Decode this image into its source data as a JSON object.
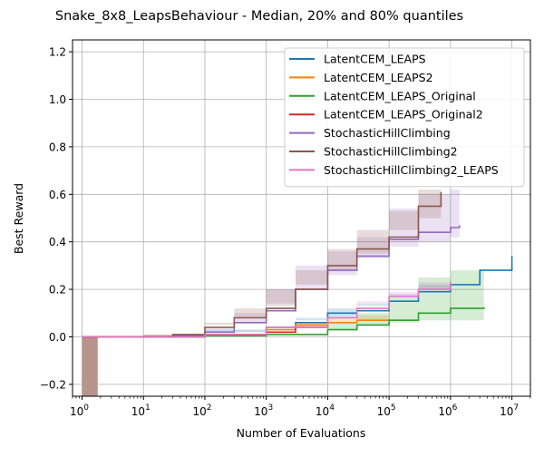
{
  "chart_data": {
    "type": "line",
    "title": "Snake_8x8_LeapsBehaviour - Median, 20% and 80% quantiles",
    "xlabel": "Number of Evaluations",
    "ylabel": "Best Reward",
    "x_scale": "log",
    "xlim": [
      0.7,
      20000000
    ],
    "ylim": [
      -0.25,
      1.25
    ],
    "x_ticks": [
      {
        "value": 1,
        "label": "10^0"
      },
      {
        "value": 10,
        "label": "10^1"
      },
      {
        "value": 100,
        "label": "10^2"
      },
      {
        "value": 1000,
        "label": "10^3"
      },
      {
        "value": 10000,
        "label": "10^4"
      },
      {
        "value": 100000,
        "label": "10^5"
      },
      {
        "value": 1000000,
        "label": "10^6"
      },
      {
        "value": 10000000,
        "label": "10^7"
      }
    ],
    "y_ticks": [
      {
        "value": -0.2,
        "label": "−0.2"
      },
      {
        "value": 0.0,
        "label": "0.0"
      },
      {
        "value": 0.2,
        "label": "0.2"
      },
      {
        "value": 0.4,
        "label": "0.4"
      },
      {
        "value": 0.6,
        "label": "0.6"
      },
      {
        "value": 0.8,
        "label": "0.8"
      },
      {
        "value": 1.0,
        "label": "1.0"
      },
      {
        "value": 1.2,
        "label": "1.2"
      }
    ],
    "grid": true,
    "legend_position": "top-right",
    "series": [
      {
        "name": "LatentCEM_LEAPS",
        "color": "#1f77b4",
        "x": [
          1,
          10,
          100,
          1000,
          3000,
          10000,
          30000,
          100000,
          300000,
          1000000,
          3000000,
          10000000
        ],
        "y": [
          0,
          0,
          0.01,
          0.04,
          0.06,
          0.1,
          0.11,
          0.15,
          0.19,
          0.22,
          0.28,
          0.34
        ],
        "y_low": [
          0,
          0,
          0.01,
          0.03,
          0.05,
          0.07,
          0.08,
          0.13,
          0.17,
          0.2,
          0.26,
          0.32
        ],
        "y_high": [
          0,
          0,
          0.02,
          0.05,
          0.08,
          0.12,
          0.14,
          0.18,
          0.22,
          0.26,
          0.32,
          0.35
        ]
      },
      {
        "name": "LatentCEM_LEAPS2",
        "color": "#ff7f0e",
        "x": [
          1,
          10,
          100,
          1000,
          3000,
          10000,
          30000,
          100000
        ],
        "y": [
          0,
          0,
          0.01,
          0.03,
          0.05,
          0.06,
          0.07,
          0.075
        ],
        "y_low": [
          0,
          0,
          0.01,
          0.02,
          0.04,
          0.05,
          0.06,
          0.07
        ],
        "y_high": [
          0,
          0,
          0.02,
          0.04,
          0.06,
          0.08,
          0.09,
          0.09
        ]
      },
      {
        "name": "LatentCEM_LEAPS_Original",
        "color": "#2ca02c",
        "x": [
          1,
          10,
          100,
          1000,
          10000,
          30000,
          100000,
          300000,
          1000000,
          3500000
        ],
        "y": [
          0,
          0,
          0.005,
          0.01,
          0.03,
          0.05,
          0.07,
          0.1,
          0.12,
          0.125
        ],
        "y_low": [
          0,
          0,
          0.005,
          0.01,
          0.02,
          0.03,
          0.05,
          0.06,
          0.07,
          0.07
        ],
        "y_high": [
          0,
          0,
          0.01,
          0.02,
          0.06,
          0.1,
          0.17,
          0.25,
          0.28,
          0.28
        ]
      },
      {
        "name": "LatentCEM_LEAPS_Original2",
        "color": "#d62728",
        "x": [
          1,
          10,
          100,
          1000,
          3000,
          10000
        ],
        "y": [
          0,
          0,
          0.01,
          0.02,
          0.04,
          0.05
        ],
        "y_low": [
          0,
          0,
          0.005,
          0.01,
          0.03,
          0.04
        ],
        "y_high": [
          0,
          0,
          0.01,
          0.03,
          0.05,
          0.06
        ]
      },
      {
        "name": "StochasticHillClimbing",
        "color": "#9467bd",
        "x": [
          1,
          10,
          30,
          100,
          300,
          1000,
          3000,
          10000,
          30000,
          100000,
          300000,
          1000000,
          1400000
        ],
        "y": [
          0,
          0,
          0.005,
          0.02,
          0.06,
          0.11,
          0.2,
          0.28,
          0.34,
          0.41,
          0.44,
          0.46,
          0.47
        ],
        "y_low": [
          0,
          0,
          0.005,
          0.01,
          0.03,
          0.06,
          0.14,
          0.2,
          0.26,
          0.33,
          0.38,
          0.4,
          0.42
        ],
        "y_high": [
          0,
          0,
          0.01,
          0.04,
          0.1,
          0.2,
          0.3,
          0.36,
          0.42,
          0.54,
          0.6,
          0.62,
          0.62
        ]
      },
      {
        "name": "StochasticHillClimbing2",
        "color": "#8c564b",
        "x": [
          1,
          10,
          30,
          100,
          300,
          1000,
          3000,
          10000,
          30000,
          100000,
          300000,
          700000
        ],
        "y": [
          0,
          0,
          0.01,
          0.04,
          0.08,
          0.12,
          0.2,
          0.3,
          0.37,
          0.42,
          0.55,
          0.61
        ],
        "y_low": [
          0,
          0,
          0.005,
          0.02,
          0.05,
          0.08,
          0.13,
          0.22,
          0.28,
          0.35,
          0.45,
          0.5
        ],
        "y_high": [
          0,
          0,
          0.02,
          0.06,
          0.12,
          0.2,
          0.28,
          0.37,
          0.45,
          0.53,
          0.62,
          0.66
        ]
      },
      {
        "name": "StochasticHillClimbing2_LEAPS",
        "color": "#e377c2",
        "x": [
          1,
          10,
          100,
          1000,
          10000,
          30000,
          100000,
          300000,
          1000000
        ],
        "y": [
          0,
          0,
          0.01,
          0.04,
          0.08,
          0.12,
          0.17,
          0.2,
          0.23
        ],
        "y_low": [
          0,
          0,
          0.005,
          0.03,
          0.06,
          0.1,
          0.14,
          0.17,
          0.2
        ],
        "y_high": [
          0,
          0,
          0.02,
          0.06,
          0.1,
          0.15,
          0.19,
          0.23,
          0.26
        ]
      }
    ],
    "bars": [
      {
        "x_start": 1,
        "x_end": 1.8,
        "y_bottom": -0.25,
        "y_top": 0.0,
        "color": "#b8948c"
      }
    ]
  }
}
